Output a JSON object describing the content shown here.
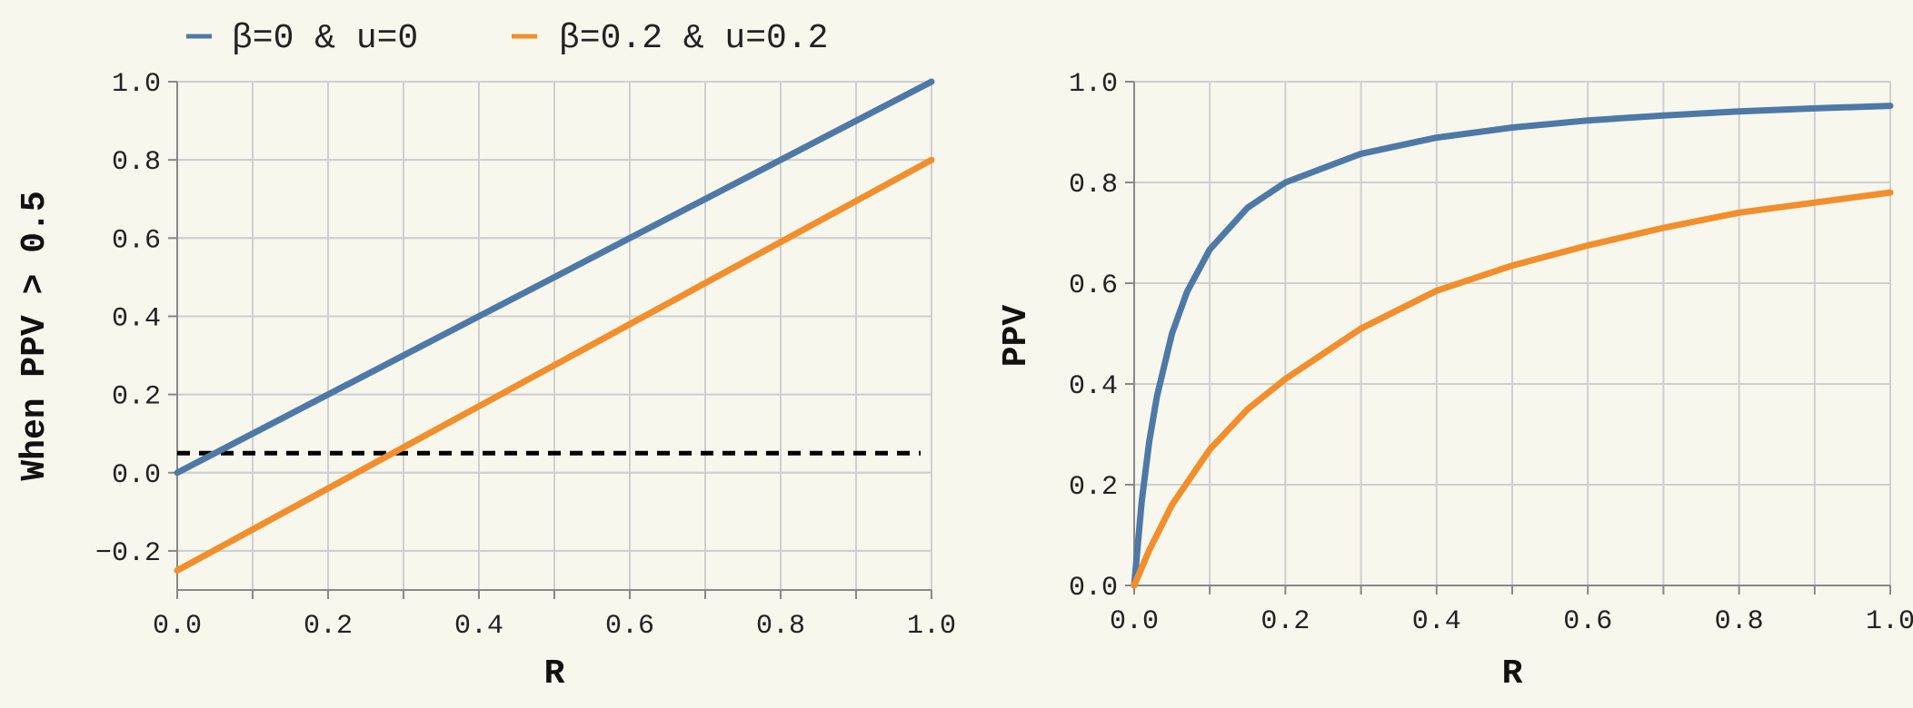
{
  "legend": [
    {
      "label": "β=0 & u=0",
      "color": "#4e79a7"
    },
    {
      "label": "β=0.2 & u=0.2",
      "color": "#f28e2b"
    }
  ],
  "chart_data": [
    {
      "type": "line",
      "xlabel": "R",
      "ylabel": "When PPV > 0.5",
      "xlim": [
        0,
        1
      ],
      "ylim": [
        -0.3,
        1.0
      ],
      "x_ticks": [
        "0.0",
        "0.2",
        "0.4",
        "0.6",
        "0.8",
        "1.0"
      ],
      "y_ticks": [
        "−0.2",
        "0.0",
        "0.2",
        "0.4",
        "0.6",
        "0.8",
        "1.0"
      ],
      "x_tick_values": [
        0,
        0.2,
        0.4,
        0.6,
        0.8,
        1.0
      ],
      "y_tick_values": [
        -0.2,
        0,
        0.2,
        0.4,
        0.6,
        0.8,
        1.0
      ],
      "grid": true,
      "series": [
        {
          "name": "β=0 & u=0",
          "color": "#4e79a7",
          "x": [
            0,
            1
          ],
          "y": [
            0,
            1.0
          ]
        },
        {
          "name": "β=0.2 & u=0.2",
          "color": "#f28e2b",
          "x": [
            0,
            1
          ],
          "y": [
            -0.25,
            0.8
          ]
        }
      ],
      "reference_line": {
        "y": 0.05,
        "style": "dashed",
        "color": "#000000"
      }
    },
    {
      "type": "line",
      "xlabel": "R",
      "ylabel": "PPV",
      "xlim": [
        0,
        1
      ],
      "ylim": [
        0,
        1.0
      ],
      "x_ticks": [
        "0.0",
        "0.2",
        "0.4",
        "0.6",
        "0.8",
        "1.0"
      ],
      "y_ticks": [
        "0.0",
        "0.2",
        "0.4",
        "0.6",
        "0.8",
        "1.0"
      ],
      "x_tick_values": [
        0,
        0.2,
        0.4,
        0.6,
        0.8,
        1.0
      ],
      "y_tick_values": [
        0,
        0.2,
        0.4,
        0.6,
        0.8,
        1.0
      ],
      "grid": true,
      "series": [
        {
          "name": "β=0 & u=0",
          "color": "#4e79a7",
          "x": [
            0,
            0.01,
            0.02,
            0.03,
            0.05,
            0.07,
            0.1,
            0.15,
            0.2,
            0.3,
            0.4,
            0.5,
            0.6,
            0.7,
            0.8,
            0.9,
            1.0
          ],
          "y": [
            0,
            0.167,
            0.286,
            0.375,
            0.5,
            0.583,
            0.667,
            0.75,
            0.8,
            0.857,
            0.889,
            0.909,
            0.923,
            0.933,
            0.941,
            0.947,
            0.952
          ]
        },
        {
          "name": "β=0.2 & u=0.2",
          "color": "#f28e2b",
          "x": [
            0,
            0.02,
            0.05,
            0.1,
            0.15,
            0.2,
            0.3,
            0.4,
            0.5,
            0.6,
            0.7,
            0.8,
            0.9,
            1.0
          ],
          "y": [
            0,
            0.07,
            0.16,
            0.27,
            0.35,
            0.41,
            0.51,
            0.585,
            0.635,
            0.675,
            0.71,
            0.74,
            0.76,
            0.78
          ]
        }
      ]
    }
  ]
}
